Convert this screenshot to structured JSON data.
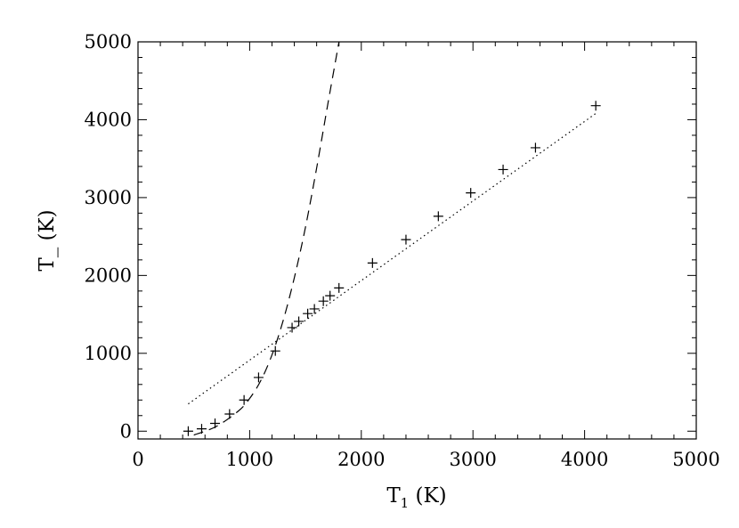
{
  "chart_data": {
    "type": "scatter",
    "title": "",
    "xlabel": {
      "main": "T",
      "sub": "1",
      "unit": "(K)"
    },
    "ylabel": {
      "main": "T_",
      "unit": "(K)"
    },
    "xlim": [
      0,
      5000
    ],
    "ylim": [
      -100,
      5000
    ],
    "xticks": [
      0,
      1000,
      2000,
      3000,
      4000,
      5000
    ],
    "yticks": [
      0,
      1000,
      2000,
      3000,
      4000,
      5000
    ],
    "grid": false,
    "series": [
      {
        "style": "plus-markers",
        "x": [
          450,
          570,
          690,
          820,
          950,
          1080,
          1230,
          1380,
          1440,
          1520,
          1580,
          1660,
          1720,
          1800,
          2100,
          2400,
          2690,
          2980,
          3270,
          3560,
          4100
        ],
        "y": [
          0,
          30,
          100,
          220,
          400,
          690,
          1030,
          1330,
          1410,
          1510,
          1570,
          1670,
          1740,
          1840,
          2160,
          2460,
          2760,
          3060,
          3360,
          3640,
          4180
        ]
      },
      {
        "style": "dashed-curve",
        "x": [
          500,
          700,
          900,
          1000,
          1100,
          1200,
          1300,
          1400,
          1500,
          1600,
          1700,
          1800
        ],
        "y": [
          -50,
          60,
          260,
          420,
          650,
          980,
          1420,
          1970,
          2620,
          3380,
          4200,
          5000
        ]
      },
      {
        "style": "dotted-line",
        "x": [
          450,
          4100
        ],
        "y": [
          350,
          4080
        ]
      }
    ]
  }
}
